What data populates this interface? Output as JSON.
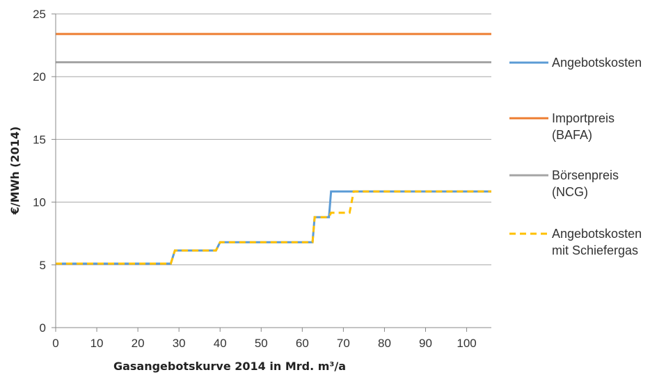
{
  "chart_data": {
    "type": "line",
    "title": "",
    "xlabel": "Gasangebotskurve 2014 in Mrd. m³/a",
    "ylabel": "€/MWh (2014)",
    "xlim": [
      0,
      106
    ],
    "ylim": [
      0,
      25
    ],
    "x_ticks": [
      "0",
      "10",
      "20",
      "30",
      "40",
      "50",
      "60",
      "70",
      "80",
      "90",
      "100"
    ],
    "y_ticks": [
      "0",
      "5",
      "10",
      "15",
      "20",
      "25"
    ],
    "grid": "horizontal",
    "legend_position": "right",
    "series": [
      {
        "name": "Angebotskosten",
        "color": "#5b9bd5",
        "dash": "solid",
        "x": [
          0,
          28,
          29,
          39,
          40,
          62.5,
          63,
          66.5,
          67,
          106
        ],
        "y": [
          5.1,
          5.1,
          6.15,
          6.15,
          6.8,
          6.8,
          8.8,
          8.8,
          10.85,
          10.85
        ]
      },
      {
        "name": "Importpreis (BAFA)",
        "legend_lines": [
          "Importpreis",
          "(BAFA)"
        ],
        "color": "#ed7d31",
        "dash": "solid",
        "x": [
          0,
          106
        ],
        "y": [
          23.4,
          23.4
        ]
      },
      {
        "name": "Börsenpreis (NCG)",
        "legend_lines": [
          "Börsenpreis",
          "(NCG)"
        ],
        "color": "#a5a5a5",
        "dash": "solid",
        "x": [
          0,
          106
        ],
        "y": [
          21.15,
          21.15
        ]
      },
      {
        "name": "Angebotskosten mit Schiefergas",
        "legend_lines": [
          "Angebotskosten",
          "mit Schiefergas"
        ],
        "color": "#ffc000",
        "dash": "dashed",
        "x": [
          0,
          28,
          29,
          39,
          40,
          62.5,
          63,
          66.5,
          67,
          71.5,
          72.5,
          106
        ],
        "y": [
          5.1,
          5.1,
          6.15,
          6.15,
          6.8,
          6.8,
          8.8,
          8.8,
          9.15,
          9.15,
          10.85,
          10.85
        ]
      }
    ]
  }
}
